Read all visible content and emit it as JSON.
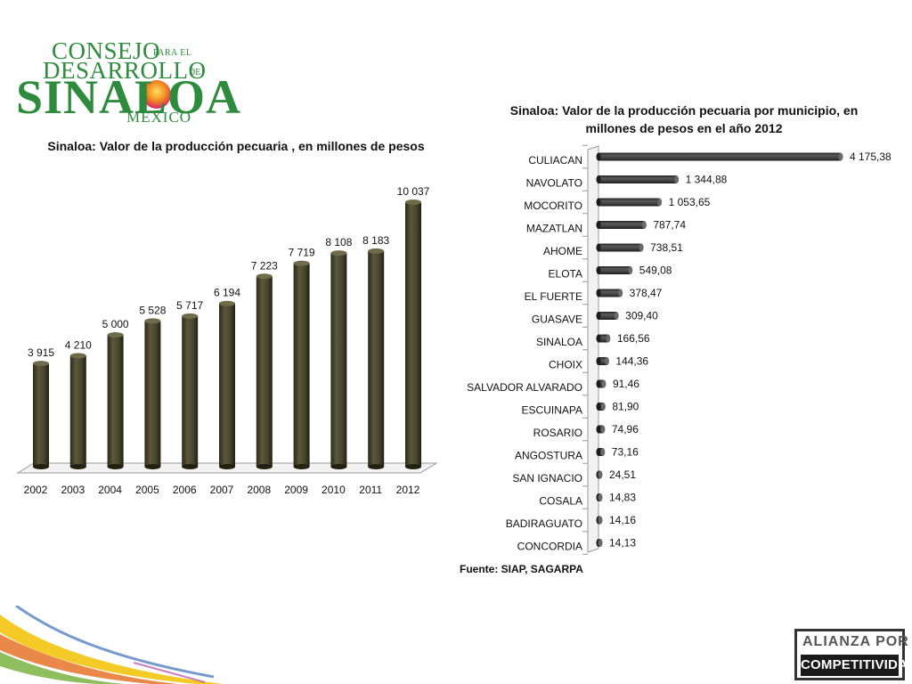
{
  "logo": {
    "line1": "CONSEJO",
    "line1_small": "PARA EL",
    "line2": "DESARROLLO",
    "line2_small": "DE",
    "line3": "SINALOA",
    "line4": "MEXICO"
  },
  "partner_logo": {
    "line1": "ALIANZA POR LA",
    "line2": "COMPETITIVIDAD"
  },
  "source": "Fuente: SIAP, SAGARPA",
  "colors": {
    "bar_left": "#48452f",
    "bar_right": "#3f3f3f",
    "logo_green": "#2e8b3e"
  },
  "chart_data": [
    {
      "type": "bar",
      "orientation": "vertical",
      "title": "Sinaloa: Valor de la producción pecuaria , en millones de pesos",
      "categories": [
        "2002",
        "2003",
        "2004",
        "2005",
        "2006",
        "2007",
        "2008",
        "2009",
        "2010",
        "2011",
        "2012"
      ],
      "values": [
        3915,
        4210,
        5000,
        5528,
        5717,
        6194,
        7223,
        7719,
        8108,
        8183,
        10037
      ],
      "labels": [
        "3 915",
        "4 210",
        "5 000",
        "5 528",
        "5 717",
        "6 194",
        "7 223",
        "7 719",
        "8 108",
        "8 183",
        "10 037"
      ],
      "ylim": [
        0,
        11000
      ],
      "grid": false,
      "style": "3d-cylinder"
    },
    {
      "type": "bar",
      "orientation": "horizontal",
      "title": "Sinaloa: Valor de la producción pecuaria por municipio, en millones de pesos en el año 2012",
      "categories": [
        "CULIACAN",
        "NAVOLATO",
        "MOCORITO",
        "MAZATLAN",
        "AHOME",
        "ELOTA",
        "EL FUERTE",
        "GUASAVE",
        "SINALOA",
        "CHOIX",
        "SALVADOR ALVARADO",
        "ESCUINAPA",
        "ROSARIO",
        "ANGOSTURA",
        "SAN IGNACIO",
        "COSALA",
        "BADIRAGUATO",
        "CONCORDIA"
      ],
      "values": [
        4175.38,
        1344.88,
        1053.65,
        787.74,
        738.51,
        549.08,
        378.47,
        309.4,
        166.56,
        144.36,
        91.46,
        81.9,
        74.96,
        73.16,
        24.51,
        14.83,
        14.16,
        14.13
      ],
      "labels": [
        "4 175,38",
        "1 344,88",
        "1 053,65",
        "787,74",
        "738,51",
        "549,08",
        "378,47",
        "309,40",
        "166,56",
        "144,36",
        "91,46",
        "81,90",
        "74,96",
        "73,16",
        "24,51",
        "14,83",
        "14,16",
        "14,13"
      ],
      "xlim": [
        0,
        4200
      ],
      "grid": false,
      "style": "3d-cylinder"
    }
  ]
}
